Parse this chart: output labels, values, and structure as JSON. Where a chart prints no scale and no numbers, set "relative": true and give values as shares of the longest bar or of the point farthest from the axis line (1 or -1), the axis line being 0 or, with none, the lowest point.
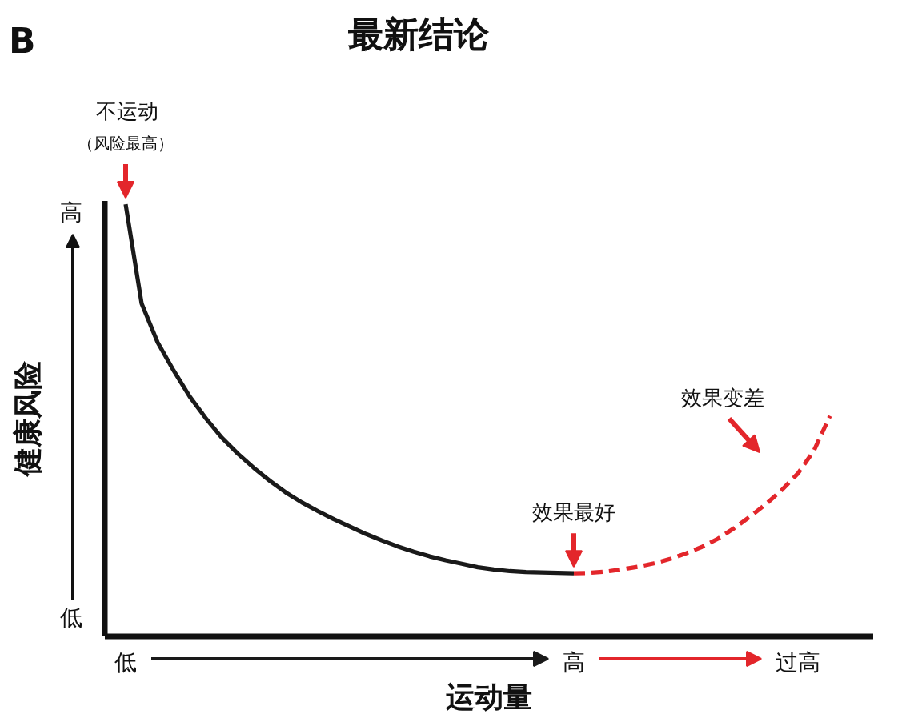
{
  "chart_data": {
    "type": "line",
    "title": "最新结论",
    "xlabel": "运动量",
    "ylabel": "健康风险",
    "relative": true,
    "categories": [
      "低",
      null,
      null,
      null,
      null,
      null,
      null,
      null,
      null,
      null,
      null,
      null,
      null,
      null,
      null,
      null,
      null,
      null,
      null,
      null,
      null,
      null,
      null,
      null,
      null,
      null,
      null,
      null,
      "高",
      null,
      null,
      null,
      null,
      null,
      null,
      null,
      null,
      null,
      null,
      null,
      null,
      null,
      "过高",
      null,
      null
    ],
    "series": [
      {
        "color": "#1a1a1a",
        "line_style": "solid",
        "values": [
          1.0,
          0.77,
          0.68,
          0.615,
          0.555,
          0.505,
          0.46,
          0.423,
          0.39,
          0.36,
          0.333,
          0.31,
          0.29,
          0.271,
          0.254,
          0.237,
          0.222,
          0.208,
          0.196,
          0.185,
          0.176,
          0.168,
          0.16,
          0.155,
          0.151,
          0.149,
          0.148,
          0.147,
          0.146,
          null,
          null,
          null,
          null,
          null,
          null,
          null,
          null,
          null,
          null,
          null,
          null,
          null,
          null,
          null,
          null
        ]
      },
      {
        "color": "#e3262b",
        "line_style": "dashed",
        "values": [
          null,
          null,
          null,
          null,
          null,
          null,
          null,
          null,
          null,
          null,
          null,
          null,
          null,
          null,
          null,
          null,
          null,
          null,
          null,
          null,
          null,
          null,
          null,
          null,
          null,
          null,
          null,
          null,
          0.146,
          0.147,
          0.15,
          0.155,
          0.161,
          0.169,
          0.179,
          0.192,
          0.207,
          0.226,
          0.25,
          0.277,
          0.306,
          0.339,
          0.377,
          0.43,
          0.51
        ]
      }
    ],
    "annotations": [
      "B",
      "不运动",
      {
        "text": "（风险最高）",
        "x": "低",
        "y": 1.0
      },
      {
        "text": "效果最好",
        "x": "高",
        "y": 0.146
      },
      "高",
      "低",
      "效果变差"
    ]
  }
}
